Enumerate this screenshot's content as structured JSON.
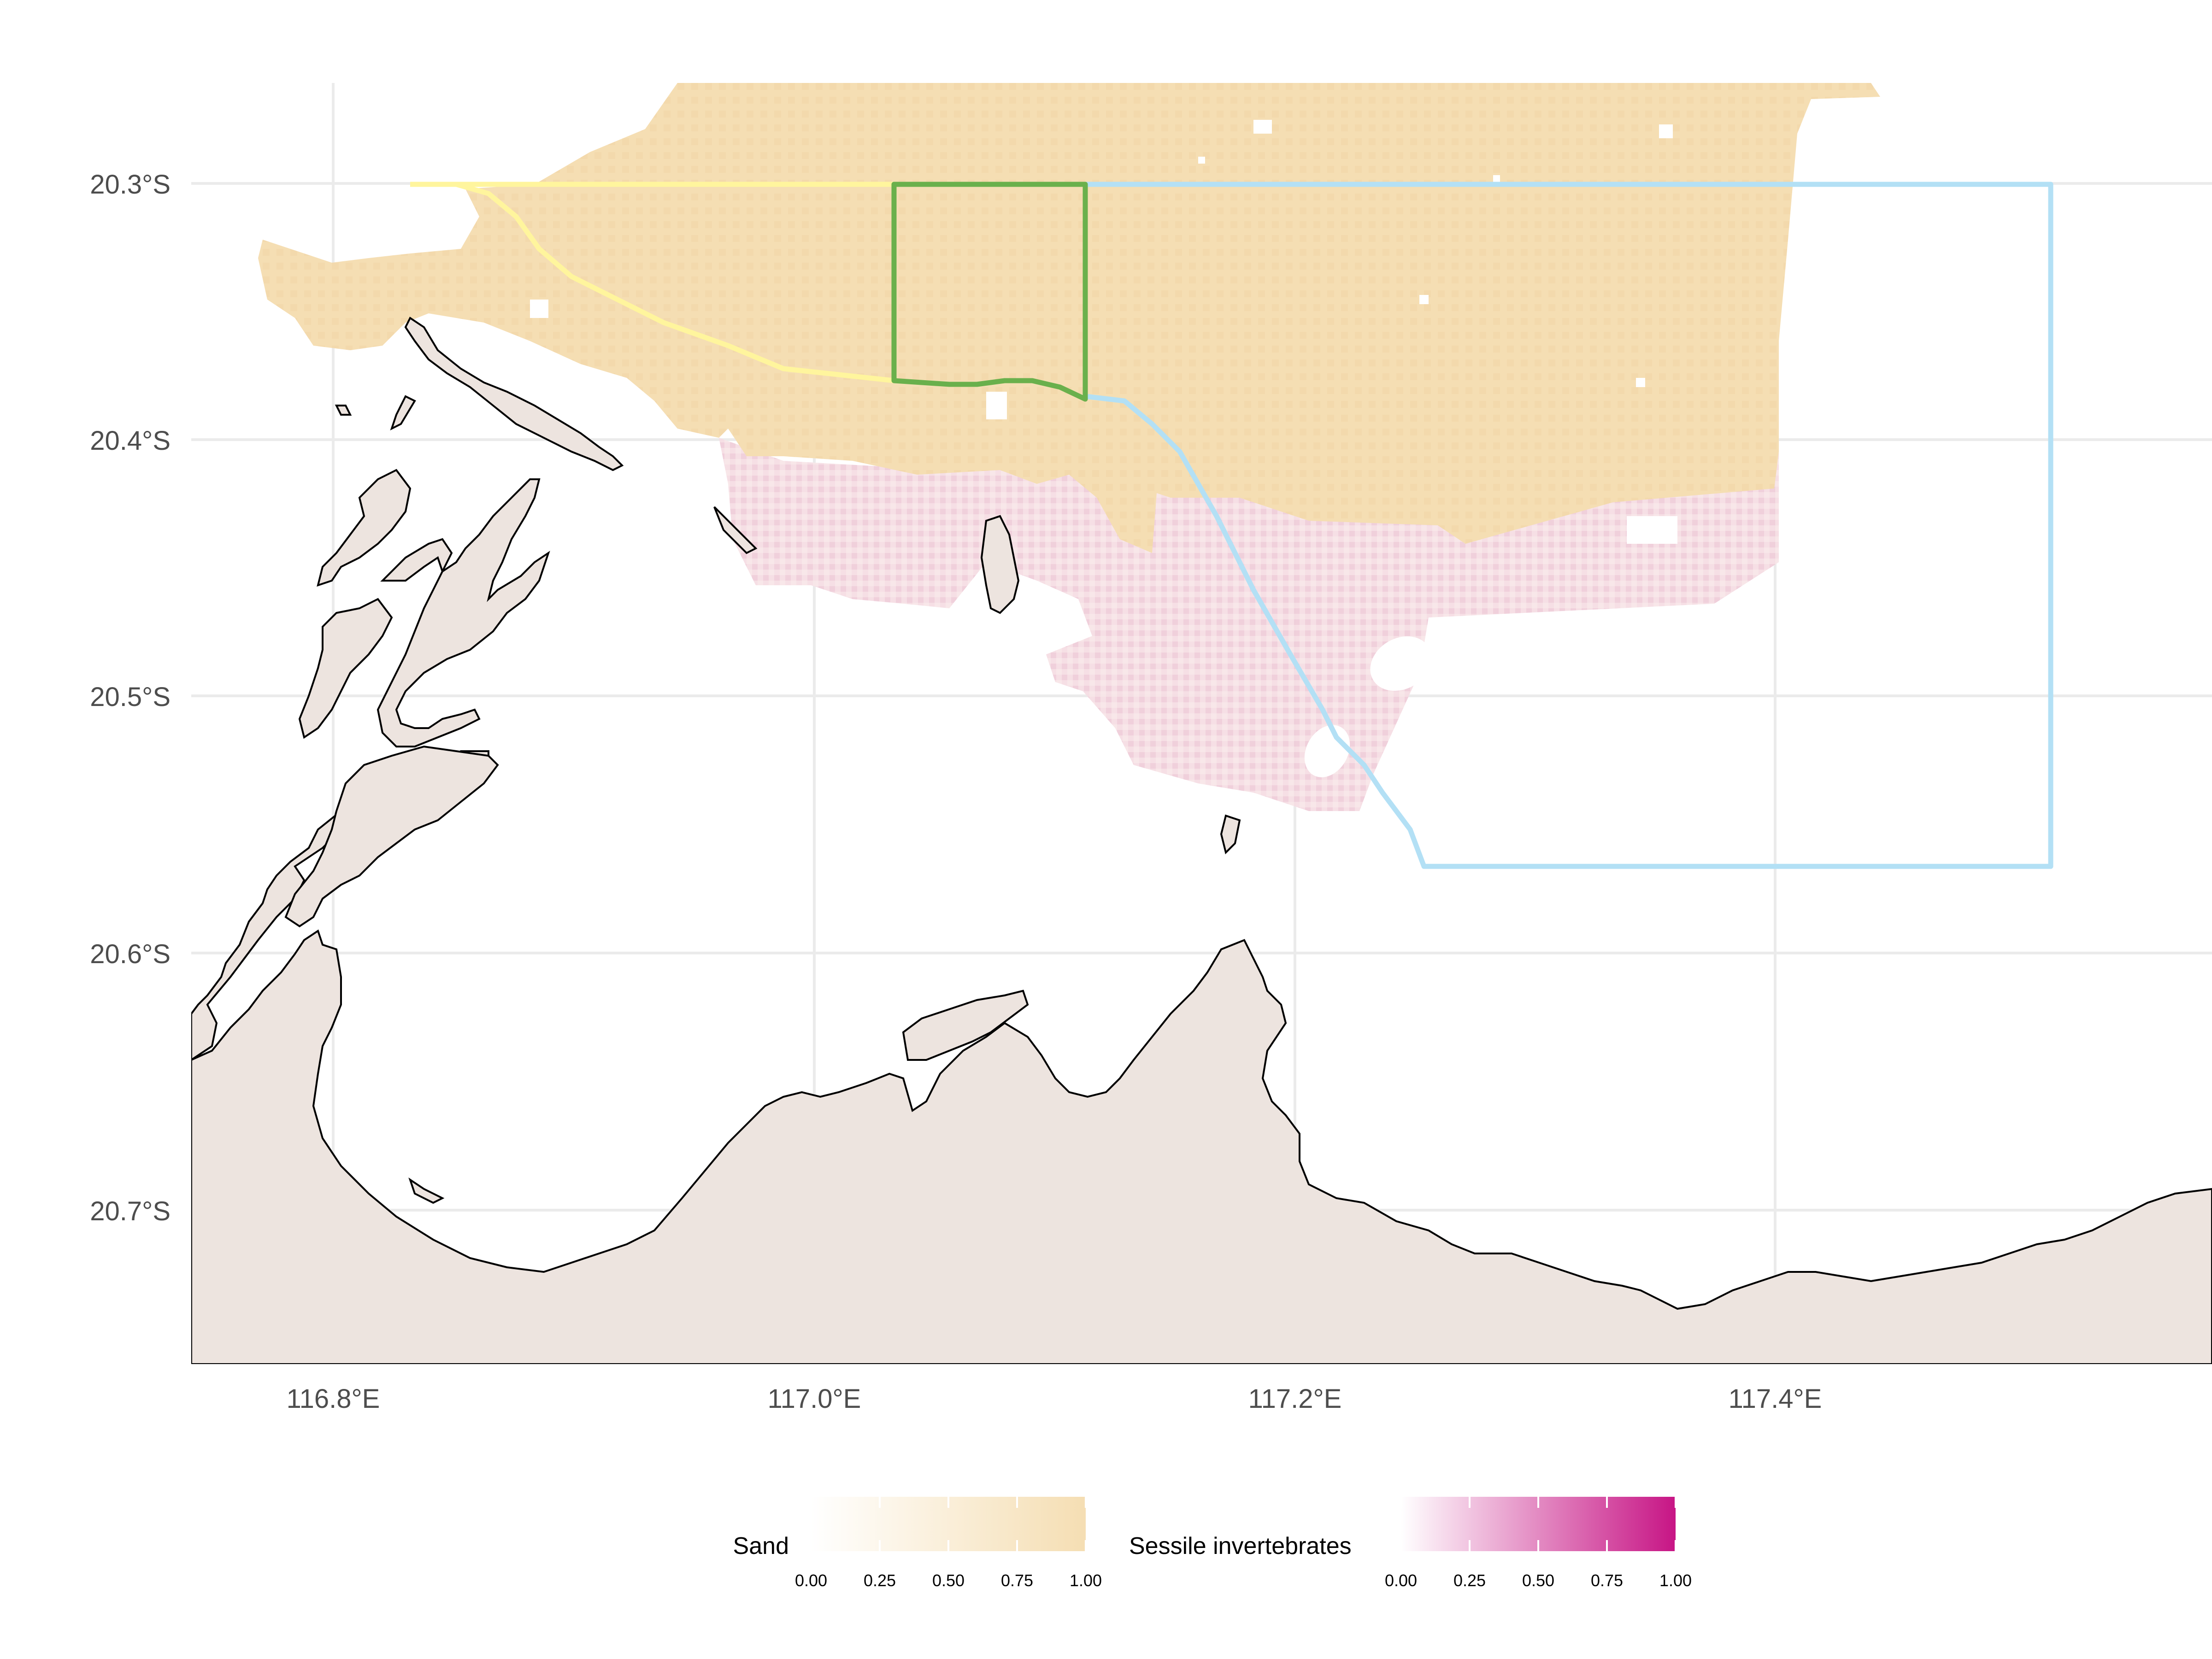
{
  "map": {
    "x_axis": {
      "min": 116.74,
      "max": 117.58,
      "ticks": [
        "116.8°E",
        "117.0°E",
        "117.2°E",
        "117.4°E"
      ],
      "tick_values": [
        116.8,
        117.0,
        117.2,
        117.4
      ]
    },
    "y_axis": {
      "min": -20.762,
      "max": -20.256,
      "ticks": [
        "20.3°S",
        "20.4°S",
        "20.5°S",
        "20.6°S",
        "20.7°S"
      ],
      "tick_values": [
        -20.3,
        -20.4,
        -20.5,
        -20.6,
        -20.7
      ]
    },
    "grid": true,
    "colors": {
      "land": "#ede4df",
      "coastline": "#000000",
      "grid": "#ebebeb",
      "sand_high": "#f5deb3",
      "invert_high": "#c71585",
      "route_yellow": "#fff59d",
      "route_green": "#6ab04c",
      "route_blue": "#b3e0f5"
    },
    "overlays": [
      {
        "name": "yellow-boundary",
        "color": "#fff59d"
      },
      {
        "name": "green-box",
        "color": "#6ab04c"
      },
      {
        "name": "blue-boundary",
        "color": "#b3e0f5"
      }
    ]
  },
  "legend": {
    "placement": "bottom",
    "sand": {
      "title": "Sand",
      "ticks": [
        "0.00",
        "0.25",
        "0.50",
        "0.75",
        "1.00"
      ],
      "color_low": "#ffffff",
      "color_high": "#f5deb3"
    },
    "sessile": {
      "title": "Sessile invertebrates",
      "ticks": [
        "0.00",
        "0.25",
        "0.50",
        "0.75",
        "1.00"
      ],
      "color_low": "#ffffff",
      "color_high": "#c71585"
    }
  }
}
